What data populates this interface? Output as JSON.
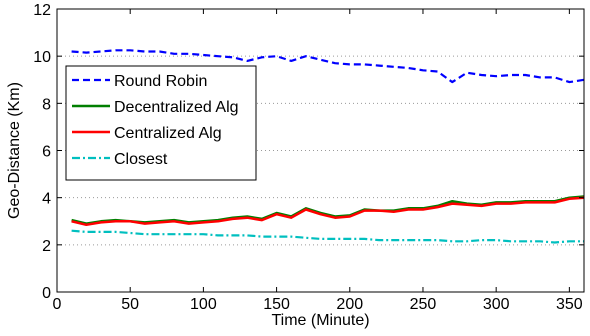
{
  "chart_data": {
    "type": "line",
    "xlabel": "Time (Minute)",
    "ylabel": "Geo-Distance (Km)",
    "xlim": [
      0,
      360
    ],
    "ylim": [
      0,
      12
    ],
    "x_ticks": [
      "0",
      "50",
      "100",
      "150",
      "200",
      "250",
      "300",
      "350"
    ],
    "y_ticks": [
      "0",
      "2",
      "4",
      "6",
      "8",
      "10",
      "12"
    ],
    "grid": "horizontal-dotted",
    "legend_position": "middle-left",
    "x": [
      10,
      20,
      30,
      40,
      50,
      60,
      70,
      80,
      90,
      100,
      110,
      120,
      130,
      140,
      150,
      160,
      170,
      180,
      190,
      200,
      210,
      220,
      230,
      240,
      250,
      260,
      270,
      280,
      290,
      300,
      310,
      320,
      330,
      340,
      350,
      360
    ],
    "series": [
      {
        "name": "Round Robin",
        "color": "#0000ff",
        "style": "dashed",
        "values": [
          10.2,
          10.15,
          10.2,
          10.25,
          10.25,
          10.2,
          10.2,
          10.1,
          10.1,
          10.05,
          10.0,
          9.95,
          9.8,
          9.95,
          10.0,
          9.8,
          10.0,
          9.85,
          9.7,
          9.65,
          9.65,
          9.6,
          9.55,
          9.5,
          9.4,
          9.35,
          8.9,
          9.3,
          9.2,
          9.15,
          9.2,
          9.2,
          9.1,
          9.1,
          8.9,
          9.0
        ]
      },
      {
        "name": "Decentralized Alg",
        "color": "#007f00",
        "style": "solid",
        "values": [
          3.05,
          2.9,
          3.0,
          3.05,
          3.0,
          2.95,
          3.0,
          3.05,
          2.95,
          3.0,
          3.05,
          3.15,
          3.2,
          3.1,
          3.35,
          3.2,
          3.55,
          3.35,
          3.2,
          3.25,
          3.5,
          3.45,
          3.45,
          3.55,
          3.55,
          3.65,
          3.85,
          3.75,
          3.7,
          3.8,
          3.8,
          3.85,
          3.85,
          3.85,
          4.0,
          4.05
        ]
      },
      {
        "name": "Centralized Alg",
        "color": "#ff0000",
        "style": "solid",
        "values": [
          3.0,
          2.85,
          2.95,
          3.0,
          3.0,
          2.9,
          2.95,
          3.0,
          2.9,
          2.95,
          3.0,
          3.1,
          3.15,
          3.05,
          3.3,
          3.15,
          3.5,
          3.3,
          3.15,
          3.2,
          3.45,
          3.45,
          3.4,
          3.5,
          3.5,
          3.6,
          3.75,
          3.7,
          3.65,
          3.75,
          3.75,
          3.8,
          3.8,
          3.8,
          3.95,
          4.0
        ]
      },
      {
        "name": "Closest",
        "color": "#00bfbf",
        "style": "dashdot",
        "values": [
          2.6,
          2.55,
          2.55,
          2.55,
          2.5,
          2.45,
          2.45,
          2.45,
          2.45,
          2.45,
          2.4,
          2.4,
          2.4,
          2.35,
          2.35,
          2.35,
          2.3,
          2.25,
          2.25,
          2.25,
          2.25,
          2.2,
          2.2,
          2.2,
          2.2,
          2.2,
          2.15,
          2.15,
          2.2,
          2.2,
          2.15,
          2.15,
          2.15,
          2.1,
          2.15,
          2.15
        ]
      }
    ]
  }
}
